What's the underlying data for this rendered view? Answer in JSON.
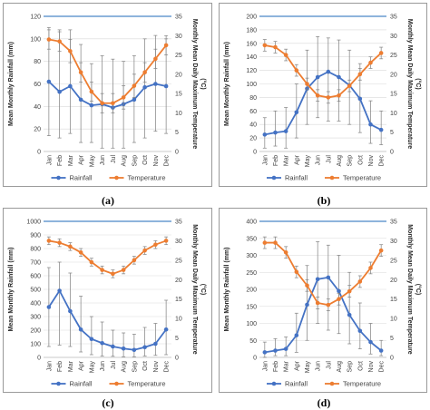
{
  "captions": [
    "(a)",
    "(b)",
    "(c)",
    "(d)"
  ],
  "colors": {
    "rainfall": "#4472C4",
    "temperature": "#ED7D31",
    "error_bar": "#7f7f7f",
    "grid": "#d9d9d9",
    "top_border": "#4a86c8"
  },
  "chart_data": [
    {
      "type": "line",
      "categories": [
        "Jan",
        "Feb",
        "Mar",
        "Apr",
        "May",
        "Jun",
        "Jul",
        "Aug",
        "Sep",
        "Oct",
        "Nov",
        "Dec"
      ],
      "ylabel": "Mean Monthly Rainfall (mm)",
      "y2label": "Monthly Mean Daily Maximum Temperature (°C)",
      "ylim": [
        0,
        120
      ],
      "yticks": [
        0,
        20,
        40,
        60,
        80,
        100,
        120
      ],
      "y2lim": [
        0,
        35
      ],
      "y2ticks": [
        0,
        5,
        10,
        15,
        20,
        25,
        30,
        35
      ],
      "legend": "bottom",
      "series": [
        {
          "name": "Rainfall",
          "axis": "left",
          "values": [
            62,
            53,
            58,
            46,
            41,
            42,
            39,
            42,
            46,
            57,
            60,
            58
          ],
          "err_low": [
            14,
            12,
            16,
            8,
            8,
            3,
            3,
            3,
            8,
            12,
            18,
            16
          ],
          "err_high": [
            110,
            108,
            108,
            95,
            78,
            85,
            82,
            80,
            85,
            100,
            103,
            100
          ]
        },
        {
          "name": "Temperature",
          "axis": "right",
          "values": [
            29,
            28.5,
            26,
            20.5,
            15.5,
            12.5,
            12.5,
            14,
            17,
            20.5,
            24,
            27.5
          ],
          "err_low": [
            26.5,
            26,
            23,
            18,
            13,
            10,
            10,
            11,
            14,
            18,
            21.5,
            25
          ],
          "err_high": [
            31.5,
            31,
            29,
            23,
            18,
            15,
            15,
            17,
            20,
            23,
            26.5,
            30
          ]
        }
      ]
    },
    {
      "type": "line",
      "categories": [
        "Jan",
        "Feb",
        "Mar",
        "Apr",
        "May",
        "Jun",
        "Jul",
        "Aug",
        "Sep",
        "Oct",
        "Nov",
        "Dec"
      ],
      "ylabel": "Mean Monthly Rainfall (mm)",
      "y2label": "Monthly Mean Daily Maximum Temperature (°C)",
      "ylim": [
        0,
        200
      ],
      "yticks": [
        0,
        20,
        40,
        60,
        80,
        100,
        120,
        140,
        160,
        180,
        200
      ],
      "y2lim": [
        0,
        35
      ],
      "y2ticks": [
        0,
        5,
        10,
        15,
        20,
        25,
        30,
        35
      ],
      "legend": "bottom",
      "series": [
        {
          "name": "Rainfall",
          "axis": "left",
          "values": [
            25,
            28,
            30,
            58,
            93,
            110,
            118,
            110,
            98,
            78,
            40,
            32
          ],
          "err_low": [
            5,
            8,
            5,
            20,
            40,
            50,
            45,
            45,
            40,
            28,
            12,
            10
          ],
          "err_high": [
            50,
            60,
            65,
            100,
            150,
            170,
            168,
            165,
            150,
            130,
            75,
            60
          ]
        },
        {
          "name": "Temperature",
          "axis": "right",
          "values": [
            27.5,
            27,
            25,
            21,
            17.5,
            14.5,
            14,
            14.5,
            17,
            20,
            23,
            25.5
          ],
          "err_low": [
            26,
            25.5,
            23.5,
            19.5,
            16,
            13,
            12.5,
            13,
            15.5,
            18.5,
            21.5,
            24
          ],
          "err_high": [
            29,
            28.5,
            26.5,
            22.5,
            19,
            16,
            15.5,
            16,
            18.5,
            21.5,
            24.5,
            27
          ]
        }
      ]
    },
    {
      "type": "line",
      "categories": [
        "Jan",
        "Feb",
        "Mar",
        "Apr",
        "May",
        "Jun",
        "Jul",
        "Aug",
        "Sep",
        "Oct",
        "Nov",
        "Dec"
      ],
      "ylabel": "Mean Monthly Rainfall (mm)",
      "y2label": "Monthly Mean Daily Maximum Temperature (°C)",
      "ylim": [
        0,
        1000
      ],
      "yticks": [
        0,
        100,
        200,
        300,
        400,
        500,
        600,
        700,
        800,
        900,
        1000
      ],
      "y2lim": [
        0,
        35
      ],
      "y2ticks": [
        0,
        5,
        10,
        15,
        20,
        25,
        30,
        35
      ],
      "legend": "bottom",
      "series": [
        {
          "name": "Rainfall",
          "axis": "left",
          "values": [
            370,
            490,
            340,
            205,
            135,
            105,
            80,
            65,
            55,
            75,
            100,
            205
          ],
          "err_low": [
            80,
            90,
            80,
            40,
            20,
            10,
            8,
            5,
            5,
            10,
            15,
            20
          ],
          "err_high": [
            660,
            700,
            620,
            450,
            300,
            260,
            200,
            180,
            170,
            220,
            250,
            420
          ]
        },
        {
          "name": "Temperature",
          "axis": "right",
          "values": [
            30,
            29.5,
            28.5,
            27,
            24.5,
            22.5,
            21.5,
            22.5,
            25,
            27.5,
            29,
            30
          ],
          "err_low": [
            29,
            28.5,
            27.5,
            26,
            23.5,
            21.5,
            20.5,
            21.5,
            24,
            26.5,
            28,
            29
          ],
          "err_high": [
            31,
            30.5,
            29.5,
            28,
            25.5,
            23.5,
            22.5,
            23.5,
            26,
            28.5,
            30,
            31
          ]
        }
      ]
    },
    {
      "type": "line",
      "categories": [
        "Jan",
        "Feb",
        "Mar",
        "Apr",
        "May",
        "Jun",
        "Jul",
        "Aug",
        "Sep",
        "Oct",
        "Nov",
        "Dec"
      ],
      "ylabel": "Mean Monthly Rainfall (mm)",
      "y2label": "Monthly Mean Daily Maximum Temperature (°C)",
      "ylim": [
        0,
        400
      ],
      "yticks": [
        0,
        50,
        100,
        150,
        200,
        250,
        300,
        350,
        400
      ],
      "y2lim": [
        0,
        35
      ],
      "y2ticks": [
        0,
        5,
        10,
        15,
        20,
        25,
        30,
        35
      ],
      "legend": "bottom",
      "series": [
        {
          "name": "Rainfall",
          "axis": "left",
          "values": [
            15,
            20,
            25,
            65,
            155,
            230,
            235,
            195,
            125,
            78,
            45,
            20
          ],
          "err_low": [
            0,
            5,
            5,
            15,
            50,
            100,
            80,
            70,
            40,
            25,
            10,
            5
          ],
          "err_high": [
            45,
            55,
            60,
            130,
            270,
            340,
            330,
            300,
            250,
            160,
            100,
            50
          ]
        },
        {
          "name": "Temperature",
          "axis": "right",
          "values": [
            29.5,
            29.5,
            27,
            22,
            18.5,
            14,
            13.5,
            15,
            17,
            19.5,
            23,
            27.5
          ],
          "err_low": [
            28,
            28,
            25.5,
            20.5,
            17,
            12.5,
            12,
            13.5,
            15.5,
            18,
            21.5,
            26
          ],
          "err_high": [
            31,
            31,
            28.5,
            23.5,
            20,
            15.5,
            15,
            16.5,
            18.5,
            21,
            24.5,
            29
          ]
        }
      ]
    }
  ]
}
